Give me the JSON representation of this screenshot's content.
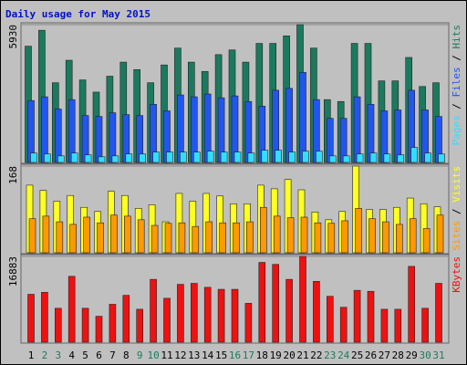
{
  "title": "Daily usage for May 2015",
  "chart_data": [
    {
      "type": "bar",
      "yticks": [
        5930
      ],
      "ylim": [
        0,
        5930
      ],
      "series": [
        {
          "name": "Hits",
          "color": "#1b7a5e",
          "values": [
            5002,
            5688,
            3429,
            4397,
            3550,
            3026,
            3711,
            4316,
            3994,
            3429,
            4195,
            4921,
            4316,
            3913,
            4639,
            4841,
            4316,
            5123,
            5123,
            5446,
            5930,
            4921,
            2703,
            2622,
            5123,
            5123,
            3510,
            3510,
            4518,
            3268,
            3429
          ]
        },
        {
          "name": "Files",
          "color": "#2255ee",
          "values": [
            2662,
            2824,
            2299,
            2703,
            2017,
            1977,
            2138,
            2057,
            2017,
            2501,
            2219,
            2904,
            2824,
            2945,
            2783,
            2864,
            2622,
            2420,
            3106,
            3187,
            3873,
            2703,
            1896,
            1896,
            2824,
            2501,
            2219,
            2259,
            3106,
            2259,
            1977
          ]
        },
        {
          "name": "Pages",
          "color": "#33ddff",
          "values": [
            403,
            363,
            282,
            403,
            323,
            242,
            282,
            363,
            363,
            444,
            444,
            444,
            444,
            484,
            444,
            444,
            403,
            524,
            524,
            444,
            484,
            484,
            282,
            282,
            363,
            403,
            363,
            323,
            645,
            403,
            363
          ]
        }
      ]
    },
    {
      "type": "bar",
      "yticks": [
        168
      ],
      "ylim": [
        0,
        168
      ],
      "series": [
        {
          "name": "Visits",
          "color": "#ffff22",
          "values": [
            131,
            121,
            100,
            111,
            88,
            80,
            119,
            111,
            86,
            93,
            60,
            115,
            100,
            115,
            110,
            95,
            95,
            131,
            124,
            142,
            122,
            79,
            64,
            80,
            168,
            84,
            84,
            88,
            106,
            95,
            89
          ]
        },
        {
          "name": "Sites",
          "color": "#ff9900",
          "values": [
            66,
            71,
            60,
            55,
            69,
            58,
            73,
            71,
            64,
            53,
            57,
            58,
            51,
            60,
            58,
            58,
            60,
            88,
            71,
            68,
            69,
            58,
            57,
            62,
            86,
            66,
            60,
            55,
            66,
            47,
            73
          ]
        }
      ]
    },
    {
      "type": "bar",
      "yticks": [
        16883
      ],
      "ylim": [
        0,
        16883
      ],
      "categories": [
        "1",
        "2",
        "3",
        "4",
        "5",
        "6",
        "7",
        "8",
        "9",
        "10",
        "11",
        "12",
        "13",
        "14",
        "15",
        "16",
        "17",
        "18",
        "19",
        "20",
        "21",
        "22",
        "23",
        "24",
        "25",
        "26",
        "27",
        "28",
        "29",
        "30",
        "31"
      ],
      "category_colors": [
        "#000000",
        "#1b7a5e",
        "#1b7a5e",
        "#000000",
        "#000000",
        "#000000",
        "#000000",
        "#000000",
        "#1b7a5e",
        "#1b7a5e",
        "#000000",
        "#000000",
        "#000000",
        "#000000",
        "#000000",
        "#1b7a5e",
        "#1b7a5e",
        "#000000",
        "#000000",
        "#000000",
        "#000000",
        "#000000",
        "#1b7a5e",
        "#1b7a5e",
        "#000000",
        "#000000",
        "#000000",
        "#000000",
        "#000000",
        "#1b7a5e",
        "#1b7a5e"
      ],
      "series": [
        {
          "name": "KBytes",
          "color": "#ee1111",
          "values": [
            9423,
            9816,
            6675,
            12957,
            6675,
            5104,
            7460,
            9227,
            6479,
            12368,
            8638,
            11386,
            11583,
            10797,
            10405,
            10405,
            7656,
            15705,
            15312,
            12368,
            16883,
            11976,
            9030,
            6871,
            10208,
            10012,
            6479,
            6479,
            14920,
            6675,
            11583
          ]
        }
      ]
    }
  ]
}
